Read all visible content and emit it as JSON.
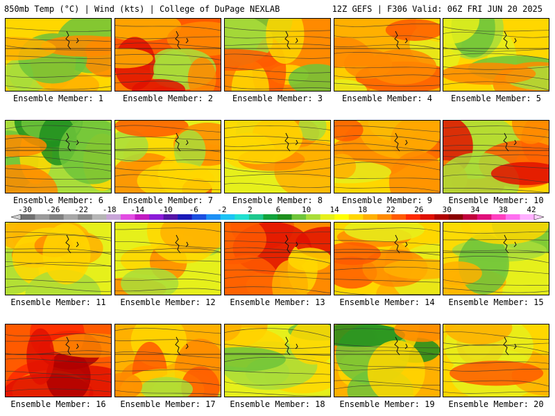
{
  "header": {
    "left": "850mb Temp (°C) | Wind (kts) | College of DuPage NEXLAB",
    "right": "12Z GEFS | F306 Valid: 06Z FRI JUN 20 2025"
  },
  "colorbar": {
    "labels": [
      "-30",
      "-26",
      "-22",
      "-18",
      "-14",
      "-10",
      "-6",
      "-2",
      "2",
      "6",
      "10",
      "14",
      "18",
      "22",
      "26",
      "30",
      "34",
      "38",
      "42"
    ],
    "colors": [
      "#707070",
      "#9a9a9a",
      "#808080",
      "#a7a7a7",
      "#8a8a8a",
      "#b5b5b5",
      "#c8a5d8",
      "#e24ce2",
      "#c11bc1",
      "#8c1bd8",
      "#5514a6",
      "#1a1ab8",
      "#1c4fe0",
      "#1d90f5",
      "#1cc3f5",
      "#21e0d0",
      "#1dc78e",
      "#12a33c",
      "#1e8f1e",
      "#6fc43a",
      "#a9dd3a",
      "#e6f01b",
      "#ffff00",
      "#ffd700",
      "#ffb000",
      "#ff8a00",
      "#ff5a00",
      "#ff2a00",
      "#e01000",
      "#b00000",
      "#8a0000",
      "#c0003c",
      "#e0107a",
      "#ff40c0",
      "#ff70f0",
      "#ffb0ff"
    ]
  },
  "members": [
    {
      "label": "Ensemble Member: 1"
    },
    {
      "label": "Ensemble Member: 2"
    },
    {
      "label": "Ensemble Member: 3"
    },
    {
      "label": "Ensemble Member: 4"
    },
    {
      "label": "Ensemble Member: 5"
    },
    {
      "label": "Ensemble Member: 6"
    },
    {
      "label": "Ensemble Member: 7"
    },
    {
      "label": "Ensemble Member: 8"
    },
    {
      "label": "Ensemble Member: 9"
    },
    {
      "label": "Ensemble Member: 10"
    },
    {
      "label": "Ensemble Member: 11"
    },
    {
      "label": "Ensemble Member: 12"
    },
    {
      "label": "Ensemble Member: 13"
    },
    {
      "label": "Ensemble Member: 14"
    },
    {
      "label": "Ensemble Member: 15"
    },
    {
      "label": "Ensemble Member: 16"
    },
    {
      "label": "Ensemble Member: 17"
    },
    {
      "label": "Ensemble Member: 18"
    },
    {
      "label": "Ensemble Member: 19"
    },
    {
      "label": "Ensemble Member: 20"
    }
  ]
}
